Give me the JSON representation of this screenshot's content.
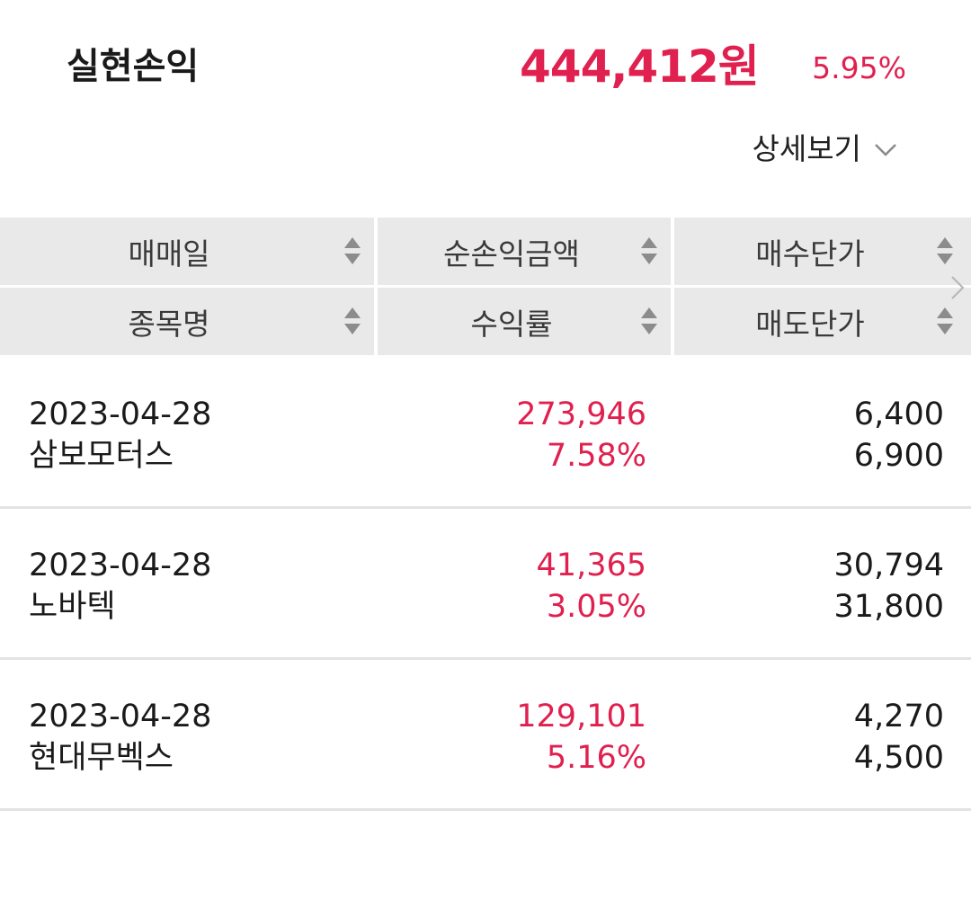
{
  "summary": {
    "label": "실현손익",
    "amount": "444,412원",
    "rate": "5.95%"
  },
  "detail_toggle": {
    "label": "상세보기",
    "icon": "chevron-down-icon"
  },
  "columns": {
    "row1": [
      "매매일",
      "순손익금액",
      "매수단가"
    ],
    "row2": [
      "종목명",
      "수익률",
      "매도단가"
    ]
  },
  "rows": [
    {
      "date": "2023-04-28",
      "name": "삼보모터스",
      "profit": "273,946",
      "rate": "7.58%",
      "buy_price": "6,400",
      "sell_price": "6,900"
    },
    {
      "date": "2023-04-28",
      "name": "노바텍",
      "profit": "41,365",
      "rate": "3.05%",
      "buy_price": "30,794",
      "sell_price": "31,800"
    },
    {
      "date": "2023-04-28",
      "name": "현대무벡스",
      "profit": "129,101",
      "rate": "5.16%",
      "buy_price": "4,270",
      "sell_price": "4,500"
    }
  ],
  "colors": {
    "positive": "#e0204f",
    "header_bg": "#e9e9e9",
    "divider": "#e3e3e3"
  }
}
